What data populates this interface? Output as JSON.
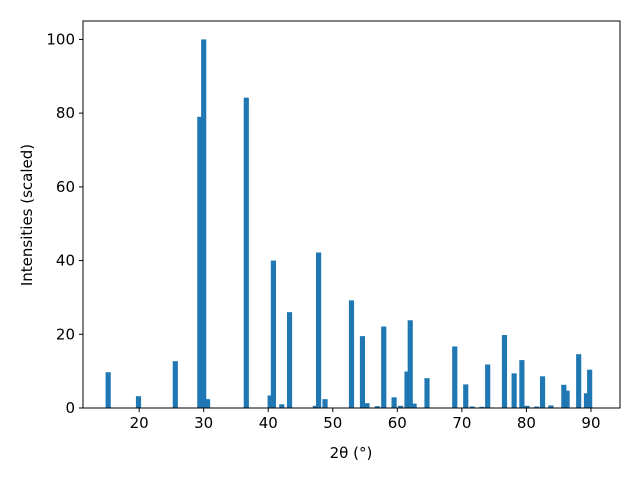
{
  "chart_data": {
    "type": "bar",
    "xlabel": "2θ (°)",
    "ylabel": "Intensities (scaled)",
    "color": "#1f77b4",
    "x": [
      15.2,
      19.9,
      25.6,
      29.4,
      30.0,
      30.6,
      36.6,
      40.3,
      40.8,
      42.1,
      43.3,
      47.3,
      47.8,
      48.8,
      52.9,
      54.6,
      55.3,
      56.9,
      57.9,
      59.5,
      60.5,
      61.5,
      62.0,
      62.6,
      64.6,
      68.9,
      70.6,
      71.6,
      73.1,
      74.0,
      76.6,
      78.1,
      79.3,
      80.1,
      81.6,
      82.5,
      83.8,
      85.8,
      86.3,
      88.1,
      89.3,
      89.8
    ],
    "values": [
      9.7,
      3.2,
      12.7,
      79,
      100,
      2.4,
      84.2,
      3.4,
      40,
      1,
      26,
      0.6,
      42.2,
      2.4,
      29.2,
      19.5,
      1.3,
      0.5,
      22.1,
      2.9,
      0.6,
      9.9,
      23.8,
      1.2,
      8.1,
      16.7,
      6.4,
      0.4,
      0.3,
      11.8,
      19.8,
      9.4,
      13,
      0.6,
      0.4,
      8.6,
      0.7,
      6.3,
      4.7,
      14.6,
      4,
      10.4
    ],
    "xlim": [
      11.3,
      94.5
    ],
    "xticks": [
      20,
      30,
      40,
      50,
      60,
      70,
      80,
      90
    ],
    "ylim": [
      0,
      105
    ],
    "yticks": [
      0,
      20,
      40,
      60,
      80,
      100
    ]
  }
}
